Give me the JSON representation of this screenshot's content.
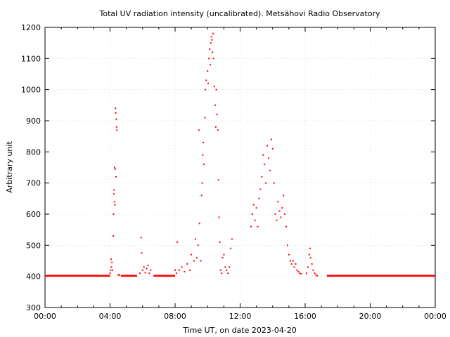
{
  "chart_data": {
    "type": "scatter",
    "title": "Total UV radiation intensity (uncalibrated). Metsähovi Radio Observatory",
    "xlabel": "Time UT, on date 2023-04-20",
    "ylabel": "Arbitrary unit",
    "xlim": [
      "00:00",
      "24:00"
    ],
    "ylim": [
      300,
      1200
    ],
    "x_ticks": [
      "00:00",
      "04:00",
      "08:00",
      "12:00",
      "16:00",
      "20:00",
      "00:00"
    ],
    "y_ticks": [
      300,
      400,
      500,
      600,
      700,
      800,
      900,
      1000,
      1100,
      1200
    ],
    "grid": true,
    "point_color": "#ff0000",
    "baseline_value": 402,
    "baseline_segments": [
      [
        "00:00",
        "04:00"
      ],
      [
        "04:40",
        "05:40"
      ],
      [
        "06:40",
        "08:00"
      ],
      [
        "17:20",
        "24:00"
      ]
    ],
    "series": [
      {
        "values": [
          [
            "04:00",
            410
          ],
          [
            "04:02",
            420
          ],
          [
            "04:04",
            455
          ],
          [
            "04:05",
            430
          ],
          [
            "04:07",
            445
          ],
          [
            "04:09",
            420
          ],
          [
            "04:12",
            530
          ],
          [
            "04:13",
            600
          ],
          [
            "04:14",
            665
          ],
          [
            "04:15",
            678
          ],
          [
            "04:16",
            640
          ],
          [
            "04:17",
            750
          ],
          [
            "04:18",
            630
          ],
          [
            "04:19",
            745
          ],
          [
            "04:20",
            940
          ],
          [
            "04:21",
            925
          ],
          [
            "04:22",
            720
          ],
          [
            "04:23",
            905
          ],
          [
            "04:24",
            880
          ],
          [
            "04:25",
            870
          ],
          [
            "04:30",
            405
          ],
          [
            "04:35",
            404
          ],
          [
            "05:50",
            410
          ],
          [
            "05:55",
            525
          ],
          [
            "05:57",
            475
          ],
          [
            "06:00",
            420
          ],
          [
            "06:05",
            430
          ],
          [
            "06:10",
            412
          ],
          [
            "06:15",
            425
          ],
          [
            "06:20",
            435
          ],
          [
            "06:25",
            410
          ],
          [
            "06:30",
            420
          ],
          [
            "08:00",
            420
          ],
          [
            "08:05",
            410
          ],
          [
            "08:08",
            510
          ],
          [
            "08:15",
            420
          ],
          [
            "08:25",
            430
          ],
          [
            "08:35",
            415
          ],
          [
            "08:45",
            440
          ],
          [
            "08:55",
            420
          ],
          [
            "09:00",
            470
          ],
          [
            "09:10",
            450
          ],
          [
            "09:15",
            520
          ],
          [
            "09:20",
            460
          ],
          [
            "09:25",
            500
          ],
          [
            "09:28",
            870
          ],
          [
            "09:30",
            570
          ],
          [
            "09:35",
            450
          ],
          [
            "09:38",
            660
          ],
          [
            "09:40",
            700
          ],
          [
            "09:42",
            790
          ],
          [
            "09:44",
            830
          ],
          [
            "09:46",
            760
          ],
          [
            "09:50",
            910
          ],
          [
            "09:52",
            1000
          ],
          [
            "09:55",
            1030
          ],
          [
            "10:00",
            1060
          ],
          [
            "10:02",
            1020
          ],
          [
            "10:05",
            1100
          ],
          [
            "10:08",
            1130
          ],
          [
            "10:10",
            1080
          ],
          [
            "10:12",
            1150
          ],
          [
            "10:14",
            1170
          ],
          [
            "10:16",
            1160
          ],
          [
            "10:18",
            1120
          ],
          [
            "10:20",
            1180
          ],
          [
            "10:22",
            1100
          ],
          [
            "10:25",
            1010
          ],
          [
            "10:28",
            950
          ],
          [
            "10:30",
            880
          ],
          [
            "10:32",
            1000
          ],
          [
            "10:35",
            920
          ],
          [
            "10:38",
            870
          ],
          [
            "10:40",
            710
          ],
          [
            "10:42",
            590
          ],
          [
            "10:45",
            510
          ],
          [
            "10:48",
            420
          ],
          [
            "10:52",
            410
          ],
          [
            "10:55",
            460
          ],
          [
            "11:00",
            470
          ],
          [
            "11:05",
            430
          ],
          [
            "11:10",
            420
          ],
          [
            "11:15",
            410
          ],
          [
            "11:20",
            430
          ],
          [
            "11:25",
            490
          ],
          [
            "11:30",
            520
          ],
          [
            "12:40",
            560
          ],
          [
            "12:45",
            600
          ],
          [
            "12:50",
            630
          ],
          [
            "12:55",
            580
          ],
          [
            "13:00",
            620
          ],
          [
            "13:05",
            560
          ],
          [
            "13:10",
            650
          ],
          [
            "13:15",
            680
          ],
          [
            "13:20",
            720
          ],
          [
            "13:25",
            790
          ],
          [
            "13:30",
            760
          ],
          [
            "13:35",
            700
          ],
          [
            "13:40",
            820
          ],
          [
            "13:45",
            780
          ],
          [
            "13:50",
            740
          ],
          [
            "13:55",
            840
          ],
          [
            "14:00",
            810
          ],
          [
            "14:05",
            700
          ],
          [
            "14:10",
            600
          ],
          [
            "14:15",
            580
          ],
          [
            "14:20",
            640
          ],
          [
            "14:25",
            610
          ],
          [
            "14:30",
            590
          ],
          [
            "14:35",
            620
          ],
          [
            "14:40",
            660
          ],
          [
            "14:45",
            600
          ],
          [
            "14:50",
            560
          ],
          [
            "14:55",
            500
          ],
          [
            "15:00",
            470
          ],
          [
            "15:05",
            450
          ],
          [
            "15:10",
            440
          ],
          [
            "15:15",
            450
          ],
          [
            "15:20",
            430
          ],
          [
            "15:25",
            440
          ],
          [
            "15:30",
            420
          ],
          [
            "15:35",
            415
          ],
          [
            "15:40",
            410
          ],
          [
            "15:45",
            408
          ],
          [
            "16:05",
            410
          ],
          [
            "16:10",
            430
          ],
          [
            "16:15",
            470
          ],
          [
            "16:18",
            490
          ],
          [
            "16:20",
            460
          ],
          [
            "16:25",
            440
          ],
          [
            "16:30",
            420
          ],
          [
            "16:35",
            410
          ],
          [
            "16:40",
            405
          ],
          [
            "16:45",
            402
          ]
        ]
      }
    ]
  }
}
